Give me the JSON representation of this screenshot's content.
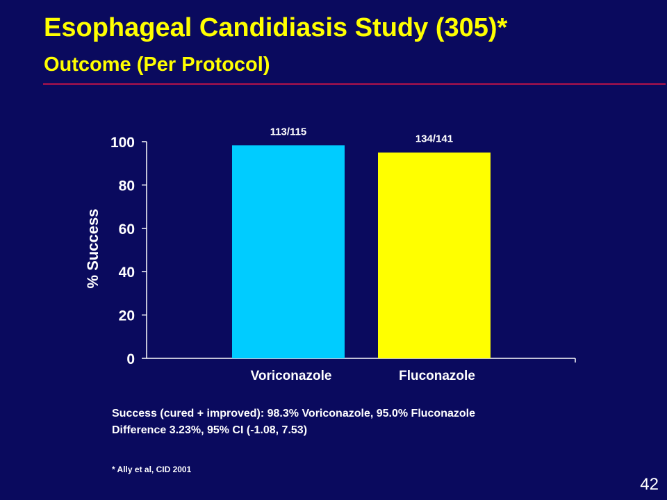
{
  "slide": {
    "title": "Esophageal Candidiasis Study (305)*",
    "subtitle": "Outcome (Per Protocol)",
    "note_line1": "Success (cured + improved): 98.3% Voriconazole,  95.0% Fluconazole",
    "note_line2": "Difference 3.23%, 95% CI (-1.08, 7.53)",
    "footnote": "* Ally et al, CID 2001",
    "page_number": "42"
  },
  "colors": {
    "background": "#0a0a5e",
    "title": "#ffff00",
    "rule": "#b3124a",
    "axis": "#ffffff"
  },
  "chart_data": {
    "type": "bar",
    "ylabel": "% Success",
    "ylim": [
      0,
      100
    ],
    "yticks": [
      0,
      20,
      40,
      60,
      80,
      100
    ],
    "grid": false,
    "categories": [
      "Voriconazole",
      "Fluconazole"
    ],
    "values": [
      98.3,
      95.0
    ],
    "data_labels": [
      "113/115",
      "134/141"
    ],
    "bar_colors": [
      "#00ccff",
      "#ffff00"
    ]
  }
}
